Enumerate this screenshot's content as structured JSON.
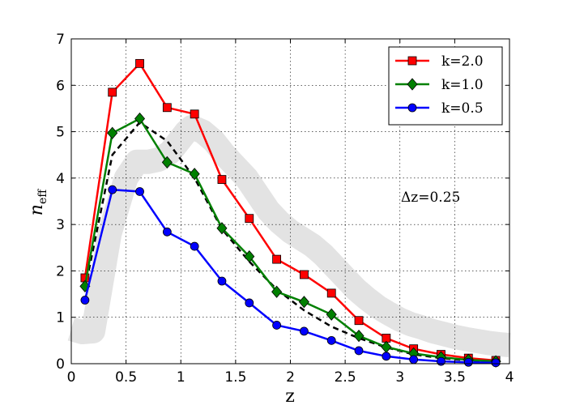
{
  "chart_data": {
    "type": "line",
    "title": "",
    "xlabel": "z",
    "ylabel_base": "n",
    "ylabel_sub": "eff",
    "xlim": [
      0,
      4
    ],
    "ylim": [
      0,
      7
    ],
    "xticks": [
      0,
      0.5,
      1,
      1.5,
      2,
      2.5,
      3,
      3.5,
      4
    ],
    "xtick_labels": [
      "0",
      "0.5",
      "1",
      "1.5",
      "2",
      "2.5",
      "3",
      "3.5",
      "4"
    ],
    "yticks": [
      0,
      1,
      2,
      3,
      4,
      5,
      6,
      7
    ],
    "ytick_labels": [
      "0",
      "1",
      "2",
      "3",
      "4",
      "5",
      "6",
      "7"
    ],
    "grid": true,
    "legend_position": "top-right",
    "annotation": "Δz=0.25",
    "x": [
      0.125,
      0.375,
      0.625,
      0.875,
      1.125,
      1.375,
      1.625,
      1.875,
      2.125,
      2.375,
      2.625,
      2.875,
      3.125,
      3.375,
      3.625,
      3.875
    ],
    "series": [
      {
        "name": "k=2.0",
        "color": "#ff0000",
        "marker": "square",
        "values": [
          1.85,
          5.85,
          6.47,
          5.52,
          5.38,
          3.97,
          3.13,
          2.25,
          1.92,
          1.52,
          0.93,
          0.55,
          0.32,
          0.2,
          0.12,
          0.07
        ]
      },
      {
        "name": "k=1.0",
        "color": "#008000",
        "marker": "diamond",
        "values": [
          1.67,
          4.97,
          5.28,
          4.34,
          4.09,
          2.92,
          2.31,
          1.55,
          1.33,
          1.06,
          0.6,
          0.36,
          0.22,
          0.14,
          0.08,
          0.05
        ]
      },
      {
        "name": "k=0.5",
        "color": "#0000ff",
        "marker": "circle",
        "values": [
          1.37,
          3.75,
          3.71,
          2.84,
          2.53,
          1.78,
          1.31,
          0.83,
          0.7,
          0.5,
          0.28,
          0.16,
          0.09,
          0.05,
          0.03,
          0.02
        ]
      }
    ],
    "reference_dashed": {
      "color": "#000000",
      "x": [
        0.125,
        0.375,
        0.625,
        0.875,
        1.125,
        1.375,
        1.625,
        1.875,
        2.125,
        2.375,
        2.625,
        2.875,
        3.125,
        3.375,
        3.625,
        3.875
      ],
      "values": [
        1.6,
        4.5,
        5.2,
        4.8,
        4.0,
        2.9,
        2.2,
        1.6,
        1.15,
        0.8,
        0.55,
        0.35,
        0.2,
        0.12,
        0.07,
        0.04
      ]
    },
    "shaded_band": {
      "color": "#e3e3e3",
      "x": [
        0.0,
        0.1,
        0.2,
        0.35,
        0.5,
        0.6,
        0.7,
        0.8,
        0.9,
        1.0,
        1.05,
        1.1,
        1.15,
        1.2,
        1.3,
        1.4,
        1.5,
        1.6,
        1.7,
        1.8,
        1.9,
        2.0,
        2.1,
        2.2,
        2.3,
        2.4,
        2.5,
        2.6,
        2.7,
        2.8,
        2.9,
        3.0,
        3.1,
        3.2,
        3.3,
        3.4,
        3.5,
        3.6,
        3.7,
        3.8,
        3.9,
        4.0
      ],
      "values": [
        0.75,
        0.68,
        0.7,
        2.8,
        4.0,
        4.35,
        4.35,
        4.4,
        4.55,
        4.85,
        5.0,
        5.1,
        5.05,
        5.0,
        4.8,
        4.5,
        4.25,
        4.0,
        3.65,
        3.3,
        3.05,
        2.85,
        2.7,
        2.55,
        2.35,
        2.1,
        1.85,
        1.6,
        1.4,
        1.22,
        1.08,
        0.95,
        0.85,
        0.78,
        0.7,
        0.64,
        0.58,
        0.53,
        0.49,
        0.45,
        0.42,
        0.4
      ]
    }
  }
}
